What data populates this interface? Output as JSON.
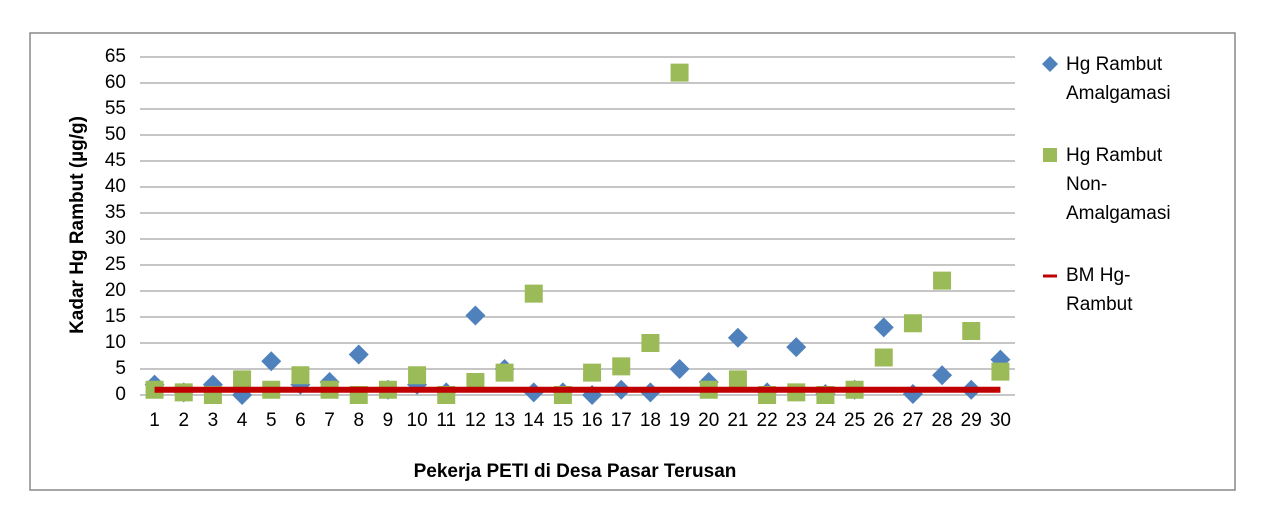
{
  "chart_data": {
    "type": "scatter",
    "x_label": "Pekerja PETI di Desa Pasar Terusan",
    "y_label": "Kadar Hg Rambut (µg/g)",
    "x": [
      1,
      2,
      3,
      4,
      5,
      6,
      7,
      8,
      9,
      10,
      11,
      12,
      13,
      14,
      15,
      16,
      17,
      18,
      19,
      20,
      21,
      22,
      23,
      24,
      25,
      26,
      27,
      28,
      29,
      30
    ],
    "xlim": [
      0.5,
      30.5
    ],
    "ylim": [
      0,
      65
    ],
    "yticks": [
      0,
      5,
      10,
      15,
      20,
      25,
      30,
      35,
      40,
      45,
      50,
      55,
      60,
      65
    ],
    "grid": true,
    "legend": "right",
    "series": [
      {
        "name": "Hg Rambut Amalgamasi",
        "color": "#4f81bd",
        "marker": "diamond",
        "values": [
          2,
          0.5,
          2,
          0,
          6.5,
          2,
          2.5,
          7.8,
          1,
          2,
          0.5,
          15.3,
          5,
          0.5,
          0.5,
          0,
          1,
          0.5,
          5,
          2.5,
          11,
          0.5,
          9.2,
          0.2,
          1,
          13,
          0.2,
          3.8,
          1,
          6.8
        ]
      },
      {
        "name": "Hg Rambut Non-Amalgamasi",
        "color": "#9bbb59",
        "marker": "square",
        "values": [
          1,
          0.5,
          0,
          3,
          1,
          3.8,
          1,
          0,
          1,
          3.8,
          0,
          2.5,
          4.3,
          19.5,
          0,
          4.3,
          5.5,
          10,
          62,
          1,
          3,
          0,
          0.5,
          0,
          1,
          7.2,
          13.8,
          22,
          12.3,
          4.5
        ]
      },
      {
        "name": "BM Hg-Rambut",
        "color": "#c00000",
        "marker": "line",
        "values": [
          1,
          1,
          1,
          1,
          1,
          1,
          1,
          1,
          1,
          1,
          1,
          1,
          1,
          1,
          1,
          1,
          1,
          1,
          1,
          1,
          1,
          1,
          1,
          1,
          1,
          1,
          1,
          1,
          1,
          1
        ]
      }
    ]
  }
}
